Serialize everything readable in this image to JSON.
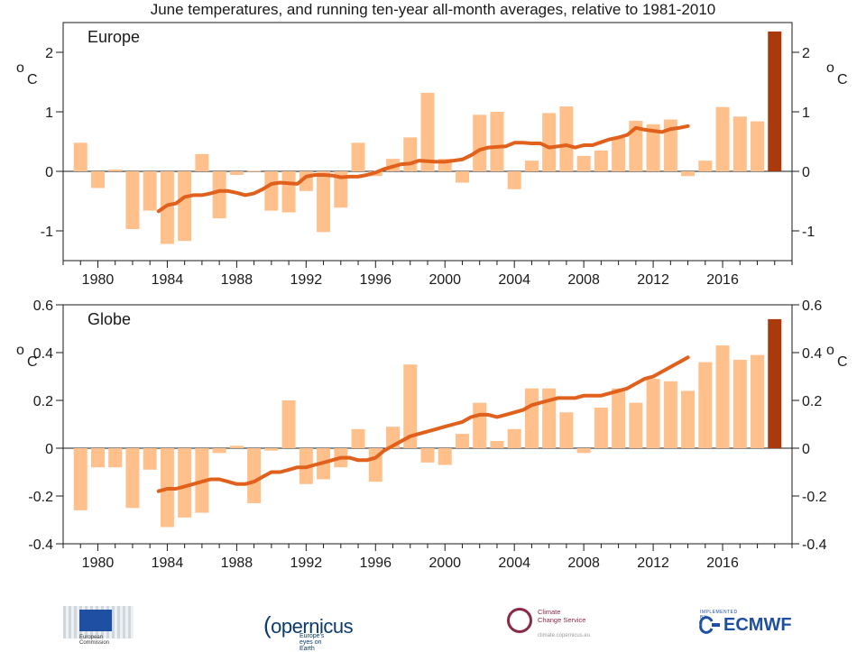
{
  "page_title": "June temperatures, and running ten-year all-month averages, relative to 1981-2010",
  "chart_data": [
    {
      "type": "bar",
      "region": "Europe",
      "unit_label_o": "o",
      "unit_label_c": "C",
      "years": [
        1979,
        1980,
        1981,
        1982,
        1983,
        1984,
        1985,
        1986,
        1987,
        1988,
        1989,
        1990,
        1991,
        1992,
        1993,
        1994,
        1995,
        1996,
        1997,
        1998,
        1999,
        2000,
        2001,
        2002,
        2003,
        2004,
        2005,
        2006,
        2007,
        2008,
        2009,
        2010,
        2011,
        2012,
        2013,
        2014,
        2015,
        2016,
        2017,
        2018,
        2019
      ],
      "values": [
        0.48,
        -0.28,
        0.03,
        -0.97,
        -0.66,
        -1.22,
        -1.17,
        0.29,
        -0.79,
        -0.06,
        0.01,
        -0.66,
        -0.69,
        -0.33,
        -1.02,
        -0.61,
        0.48,
        -0.08,
        0.21,
        0.57,
        1.32,
        0.21,
        -0.19,
        0.95,
        1.0,
        -0.3,
        0.18,
        0.98,
        1.09,
        0.26,
        0.35,
        0.56,
        0.85,
        0.79,
        0.87,
        -0.08,
        0.18,
        1.08,
        0.92,
        0.84,
        2.35
      ],
      "highlight_year": 2019,
      "running_mean": {
        "x": [
          1983.5,
          1984.0,
          1984.5,
          1985.0,
          1985.5,
          1986.0,
          1986.5,
          1987.0,
          1987.5,
          1988.0,
          1988.5,
          1989.0,
          1989.5,
          1990.0,
          1990.5,
          1991.0,
          1991.5,
          1992.0,
          1992.5,
          1993.0,
          1993.5,
          1994.0,
          1994.5,
          1995.0,
          1995.5,
          1996.0,
          1996.5,
          1997.0,
          1997.5,
          1998.0,
          1998.5,
          1999.0,
          1999.5,
          2000.0,
          2000.5,
          2001.0,
          2001.5,
          2002.0,
          2002.5,
          2003.0,
          2003.5,
          2004.0,
          2004.5,
          2005.0,
          2005.5,
          2006.0,
          2006.5,
          2007.0,
          2007.5,
          2008.0,
          2008.5,
          2009.0,
          2009.5,
          2010.0,
          2010.5,
          2011.0,
          2011.5,
          2012.0,
          2012.5,
          2013.0,
          2013.5,
          2014.0
        ],
        "y": [
          -0.67,
          -0.57,
          -0.54,
          -0.43,
          -0.4,
          -0.4,
          -0.37,
          -0.33,
          -0.33,
          -0.36,
          -0.4,
          -0.37,
          -0.3,
          -0.21,
          -0.19,
          -0.2,
          -0.21,
          -0.09,
          -0.06,
          -0.06,
          -0.07,
          -0.1,
          -0.09,
          -0.09,
          -0.06,
          -0.02,
          0.04,
          0.08,
          0.12,
          0.13,
          0.18,
          0.17,
          0.16,
          0.16,
          0.18,
          0.2,
          0.27,
          0.36,
          0.4,
          0.41,
          0.42,
          0.48,
          0.48,
          0.47,
          0.47,
          0.4,
          0.42,
          0.44,
          0.4,
          0.44,
          0.44,
          0.49,
          0.54,
          0.57,
          0.61,
          0.73,
          0.7,
          0.68,
          0.66,
          0.71,
          0.73,
          0.76
        ]
      },
      "ylim": [
        -1.5,
        2.5
      ],
      "yticks": [
        -1,
        0,
        1,
        2
      ],
      "ytick_labels": [
        "-1",
        "0",
        "1",
        "2"
      ],
      "xlim": [
        1978.0,
        2020.0
      ],
      "xticks": [
        1980,
        1984,
        1988,
        1992,
        1996,
        2000,
        2004,
        2008,
        2012,
        2016
      ],
      "xtick_labels": [
        "1980",
        "1984",
        "1988",
        "1992",
        "1996",
        "2000",
        "2004",
        "2008",
        "2012",
        "2016"
      ]
    },
    {
      "type": "bar",
      "region": "Globe",
      "unit_label_o": "o",
      "unit_label_c": "C",
      "years": [
        1979,
        1980,
        1981,
        1982,
        1983,
        1984,
        1985,
        1986,
        1987,
        1988,
        1989,
        1990,
        1991,
        1992,
        1993,
        1994,
        1995,
        1996,
        1997,
        1998,
        1999,
        2000,
        2001,
        2002,
        2003,
        2004,
        2005,
        2006,
        2007,
        2008,
        2009,
        2010,
        2011,
        2012,
        2013,
        2014,
        2015,
        2016,
        2017,
        2018,
        2019
      ],
      "values": [
        -0.26,
        -0.08,
        -0.08,
        -0.25,
        -0.09,
        -0.33,
        -0.29,
        -0.27,
        -0.02,
        0.01,
        -0.23,
        -0.01,
        0.2,
        -0.15,
        -0.13,
        -0.08,
        0.08,
        -0.14,
        0.09,
        0.35,
        -0.06,
        -0.07,
        0.06,
        0.19,
        0.03,
        0.08,
        0.25,
        0.25,
        0.15,
        -0.02,
        0.17,
        0.25,
        0.19,
        0.29,
        0.28,
        0.24,
        0.36,
        0.43,
        0.37,
        0.39,
        0.54
      ],
      "highlight_year": 2019,
      "running_mean": {
        "x": [
          1983.5,
          1984.0,
          1984.5,
          1985.0,
          1985.5,
          1986.0,
          1986.5,
          1987.0,
          1987.5,
          1988.0,
          1988.5,
          1989.0,
          1989.5,
          1990.0,
          1990.5,
          1991.0,
          1991.5,
          1992.0,
          1992.5,
          1993.0,
          1993.5,
          1994.0,
          1994.5,
          1995.0,
          1995.5,
          1996.0,
          1996.5,
          1997.0,
          1997.5,
          1998.0,
          1998.5,
          1999.0,
          1999.5,
          2000.0,
          2000.5,
          2001.0,
          2001.5,
          2002.0,
          2002.5,
          2003.0,
          2003.5,
          2004.0,
          2004.5,
          2005.0,
          2005.5,
          2006.0,
          2006.5,
          2007.0,
          2007.5,
          2008.0,
          2008.5,
          2009.0,
          2009.5,
          2010.0,
          2010.5,
          2011.0,
          2011.5,
          2012.0,
          2012.5,
          2013.0,
          2013.5,
          2014.0
        ],
        "y": [
          -0.18,
          -0.17,
          -0.17,
          -0.16,
          -0.15,
          -0.14,
          -0.13,
          -0.13,
          -0.14,
          -0.15,
          -0.15,
          -0.14,
          -0.12,
          -0.1,
          -0.1,
          -0.09,
          -0.08,
          -0.08,
          -0.07,
          -0.06,
          -0.05,
          -0.04,
          -0.04,
          -0.05,
          -0.05,
          -0.04,
          -0.01,
          0.01,
          0.03,
          0.05,
          0.06,
          0.07,
          0.08,
          0.09,
          0.1,
          0.11,
          0.13,
          0.14,
          0.14,
          0.13,
          0.14,
          0.15,
          0.16,
          0.18,
          0.19,
          0.2,
          0.21,
          0.21,
          0.21,
          0.22,
          0.22,
          0.22,
          0.23,
          0.24,
          0.25,
          0.27,
          0.29,
          0.3,
          0.32,
          0.34,
          0.36,
          0.38
        ]
      },
      "ylim": [
        -0.4,
        0.6
      ],
      "yticks": [
        -0.4,
        -0.2,
        0,
        0.2,
        0.4,
        0.6
      ],
      "ytick_labels": [
        "-0.4",
        "-0.2",
        "0",
        "0.2",
        "0.4",
        "0.6"
      ],
      "xlim": [
        1978.0,
        2020.0
      ],
      "xticks": [
        1980,
        1984,
        1988,
        1992,
        1996,
        2000,
        2004,
        2008,
        2012,
        2016
      ],
      "xtick_labels": [
        "1980",
        "1984",
        "1988",
        "1992",
        "1996",
        "2000",
        "2004",
        "2008",
        "2012",
        "2016"
      ]
    }
  ],
  "colors": {
    "bar": "#ffc08c",
    "bar_highlight": "#a83a0c",
    "running_mean": "#e0601c",
    "axis": "#1a1a1a"
  },
  "logos": {
    "ec_name": "European\nCommission",
    "copernicus_name": "opernicus",
    "copernicus_tagline": "Europe's eyes on Earth",
    "c3s_name": "Climate\nChange Service",
    "c3s_url": "climate.copernicus.eu",
    "ecmwf_implemented": "IMPLEMENTED BY",
    "ecmwf_name": "ECMWF"
  }
}
